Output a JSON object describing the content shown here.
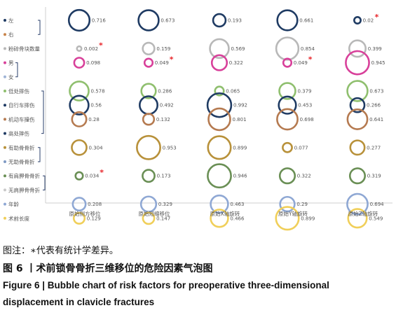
{
  "chart_data": {
    "type": "scatter",
    "subtype": "bubble",
    "columns": [
      "原始侧方移位",
      "原始短缩移位",
      "原始X轴旋转",
      "原始Y轴旋转",
      "原始Z轴旋转"
    ],
    "factors": [
      {
        "label": "左",
        "color": "#1f3b63",
        "values": [
          0.716,
          0.673,
          0.193,
          0.661,
          0.02
        ],
        "significant": [
          false,
          false,
          false,
          false,
          true
        ]
      },
      {
        "label": "右",
        "color": "#c8844a",
        "values": [
          null,
          null,
          null,
          null,
          null
        ],
        "significant": [
          false,
          false,
          false,
          false,
          false
        ]
      },
      {
        "label": "粉碎骨块数量",
        "color": "#b8b8b8",
        "values": [
          0.002,
          0.159,
          0.569,
          0.854,
          0.399
        ],
        "significant": [
          true,
          false,
          false,
          false,
          false
        ]
      },
      {
        "label": "男",
        "color": "#d8409a",
        "values": [
          0.098,
          0.049,
          0.322,
          0.049,
          0.945
        ],
        "significant": [
          false,
          true,
          false,
          true,
          false
        ]
      },
      {
        "label": "女",
        "color": "#9fb4d6",
        "values": [
          null,
          null,
          null,
          null,
          null
        ],
        "significant": [
          false,
          false,
          false,
          false,
          false
        ]
      },
      {
        "label": "低处摔伤",
        "color": "#8fbf6e",
        "values": [
          0.578,
          0.286,
          0.065,
          0.379,
          0.673
        ],
        "significant": [
          false,
          false,
          false,
          false,
          false
        ]
      },
      {
        "label": "自行车摔伤",
        "color": "#1f3b63",
        "values": [
          0.56,
          0.492,
          0.992,
          0.453,
          0.266
        ],
        "significant": [
          false,
          false,
          false,
          false,
          false
        ]
      },
      {
        "label": "机动车撞伤",
        "color": "#b57a50",
        "values": [
          0.28,
          0.132,
          0.801,
          0.698,
          0.641
        ],
        "significant": [
          false,
          false,
          false,
          false,
          false
        ]
      },
      {
        "label": "高处摔伤",
        "color": "#1f3b63",
        "values": [
          null,
          null,
          null,
          null,
          null
        ],
        "significant": [
          false,
          false,
          false,
          false,
          false
        ]
      },
      {
        "label": "有助骨骨折",
        "color": "#b8913a",
        "values": [
          0.304,
          0.953,
          0.899,
          0.077,
          0.277
        ],
        "significant": [
          false,
          false,
          false,
          false,
          false
        ]
      },
      {
        "label": "无助骨骨折",
        "color": "#7f9ac4",
        "values": [
          null,
          null,
          null,
          null,
          null
        ],
        "significant": [
          false,
          false,
          false,
          false,
          false
        ]
      },
      {
        "label": "有肩胛骨骨折",
        "color": "#6a8f55",
        "values": [
          0.034,
          0.173,
          0.946,
          0.322,
          0.319
        ],
        "significant": [
          true,
          false,
          false,
          false,
          false
        ]
      },
      {
        "label": "无肩胛骨骨折",
        "color": "#c9c9c9",
        "values": [
          null,
          null,
          null,
          null,
          null
        ],
        "significant": [
          false,
          false,
          false,
          false,
          false
        ]
      },
      {
        "label": "年龄",
        "color": "#8fa8d4",
        "values": [
          0.208,
          0.329,
          0.463,
          0.29,
          0.694
        ],
        "significant": [
          false,
          false,
          false,
          false,
          false
        ]
      },
      {
        "label": "术前长度",
        "color": "#f0cf5a",
        "values": [
          0.129,
          0.147,
          0.466,
          0.899,
          0.549
        ],
        "significant": [
          false,
          false,
          false,
          false,
          false
        ]
      }
    ],
    "brackets": [
      [
        0,
        1
      ],
      [
        3,
        4
      ],
      [
        5,
        8
      ],
      [
        9,
        10
      ],
      [
        11,
        12
      ]
    ],
    "significance_marker": "*",
    "marker_color": "#e8262b",
    "axis_color": "#cfcfcf",
    "label_color": "#555555",
    "grid": false
  },
  "captions": {
    "note": "图注：∗代表有统计学差异。",
    "figure_cn": "图 6 丨术前锁骨骨折三维移位的危险因素气泡图",
    "figure_en_line1": "Figure 6  |  Bubble chart of risk factors for preoperative three-dimensional",
    "figure_en_line2": "displacement in clavicle fractures"
  }
}
